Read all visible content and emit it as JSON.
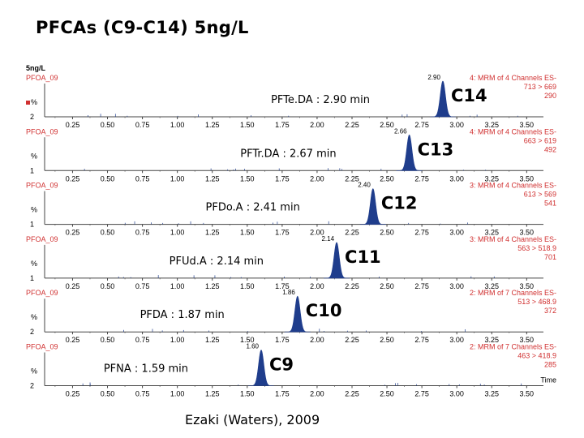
{
  "title": "PFCAs (C9-C14) 5ng/L",
  "credit": "Ezaki (Waters), 2009",
  "sample_label": "5ng/L",
  "colors": {
    "peak": "#1f3d8c",
    "header_red": "#d03030",
    "axis": "#444444",
    "label": "#000000"
  },
  "chart_data": {
    "type": "line",
    "x_ticks": [
      "0.25",
      "0.50",
      "0.75",
      "1.00",
      "1.25",
      "1.50",
      "1.75",
      "2.00",
      "2.25",
      "2.50",
      "2.75",
      "3.00",
      "3.25",
      "3.50"
    ],
    "xlim": [
      0.05,
      3.62
    ],
    "x_axis_label": "Time",
    "y_axis_label": "%",
    "panels": [
      {
        "file": "PFOA_09",
        "channel_line1": "4: MRM of 4 Channels ES-",
        "channel_line2": "713 > 669",
        "intensity": "290",
        "y_min_label": "2",
        "peak_rt": 2.9,
        "peak_label": "2.90",
        "annotation": "PFTe.DA : 2.90 min",
        "compound": "C14"
      },
      {
        "file": "PFOA_09",
        "channel_line1": "4: MRM of 4 Channels ES-",
        "channel_line2": "663 > 619",
        "intensity": "492",
        "y_min_label": "1",
        "peak_rt": 2.66,
        "peak_label": "2.66",
        "annotation": "PFTr.DA : 2.67 min",
        "compound": "C13"
      },
      {
        "file": "PFOA_09",
        "channel_line1": "3: MRM of 4 Channels ES-",
        "channel_line2": "613 > 569",
        "intensity": "541",
        "y_min_label": "1",
        "peak_rt": 2.4,
        "peak_label": "2.40",
        "annotation": "PFDo.A : 2.41 min",
        "compound": "C12"
      },
      {
        "file": "PFOA_09",
        "channel_line1": "3: MRM of 4 Channels ES-",
        "channel_line2": "563 > 518.9",
        "intensity": "701",
        "y_min_label": "1",
        "peak_rt": 2.14,
        "peak_label": "2.14",
        "annotation": "PFUd.A : 2.14 min",
        "compound": "C11"
      },
      {
        "file": "PFOA_09",
        "channel_line1": "2: MRM of 7 Channels ES-",
        "channel_line2": "513 > 468.9",
        "intensity": "372",
        "y_min_label": "2",
        "peak_rt": 1.86,
        "peak_label": "1.86",
        "annotation": "PFDA : 1.87 min",
        "compound": "C10"
      },
      {
        "file": "PFOA_09",
        "channel_line1": "2: MRM of 7 Channels ES-",
        "channel_line2": "463 > 418.9",
        "intensity": "285",
        "y_min_label": "2",
        "peak_rt": 1.6,
        "peak_label": "1.60",
        "annotation": "PFNA : 1.59 min",
        "compound": "C9"
      }
    ]
  }
}
